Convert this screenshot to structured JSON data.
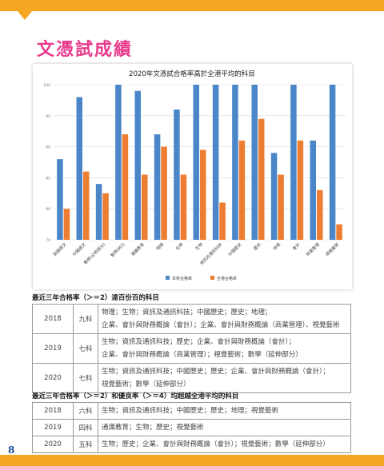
{
  "heading": "文憑試成績",
  "page_number": "8",
  "colors": {
    "school": "#4a86c8",
    "hk": "#ed7d31",
    "accent": "#f5a623",
    "title_pink": "#e83a8c"
  },
  "chart_data": {
    "type": "bar",
    "title": "2020年文憑試合格率高於全港平均的科目",
    "categories": [
      "英國語文",
      "中國語文",
      "數學(必修部分)",
      "數學(M2)",
      "通識教育",
      "物理",
      "化學",
      "生物",
      "資訊及通訊科技",
      "中國歷史",
      "歷史",
      "地理",
      "會計",
      "商業管理",
      "視覺藝術"
    ],
    "series": [
      {
        "name": "本校合格率",
        "values": [
          88,
          98,
          84,
          100,
          99,
          92,
          96,
          100,
          100,
          100,
          100,
          89,
          100,
          91,
          100
        ]
      },
      {
        "name": "全港合格率",
        "values": [
          80,
          86,
          82.5,
          92,
          85.5,
          90,
          85.5,
          89.5,
          81,
          91,
          94.5,
          85.5,
          91,
          83,
          77.5
        ]
      }
    ],
    "yticks": [
      "70",
      "80",
      "85",
      "90",
      "95",
      "100"
    ],
    "ylim": [
      75,
      100
    ],
    "legend_position": "bottom"
  },
  "section1": {
    "title": "最近三年合格率（＞＝2）達百份百的科目",
    "rows": [
      {
        "year": "2018",
        "count": "九科",
        "lines": [
          "物理；生物；資訊及通訊科技；中國歷史；歷史；地理；",
          "企業、會計與財務概論（會計）；企業、會計與財務概論（商業管理）、視覺藝術"
        ]
      },
      {
        "year": "2019",
        "count": "七科",
        "lines": [
          "生物；資訊及通訊科技；歷史；企業、會計與財務概論（會計）；",
          "企業、會計與財務概論（商業管理）；視覺藝術；數學（延伸部分）"
        ]
      },
      {
        "year": "2020",
        "count": "七科",
        "lines": [
          "生物；資訊及通訊科技；中國歷史；歷史；企業、會計與財務概論（會計）；",
          "視覺藝術；數學（延伸部分）"
        ]
      }
    ]
  },
  "section2": {
    "title": "最近三年合格率（＞＝2）和優良率（＞＝4）均超越全港平均的科目",
    "rows": [
      {
        "year": "2018",
        "count": "六科",
        "lines": [
          "生物；資訊及通訊科技；中國歷史；歷史；地理；視覺藝術"
        ]
      },
      {
        "year": "2019",
        "count": "四科",
        "lines": [
          "通識教育；生物；歷史；視覺藝術"
        ]
      },
      {
        "year": "2020",
        "count": "五科",
        "lines": [
          "生物；歷史；企業、會計與財務概論（會計）；視覺藝術；數學（延伸部分）"
        ]
      }
    ]
  }
}
